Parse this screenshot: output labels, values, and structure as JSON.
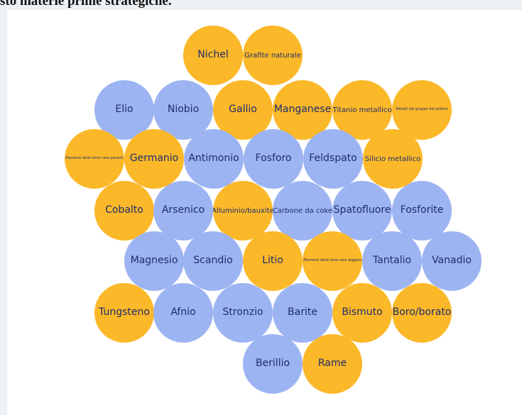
{
  "header": {
    "title": "sto materie prime strategiche."
  },
  "colors": {
    "gold": "#fbb829",
    "blue": "#9db4f2",
    "text": "#1d2d6b"
  },
  "bubbles": [
    {
      "label": "Nichel",
      "color": "gold",
      "size": "l"
    },
    {
      "label": "Grafite naturale",
      "color": "gold",
      "size": "s"
    },
    {
      "label": "Elio",
      "color": "blue",
      "size": "l"
    },
    {
      "label": "Niobio",
      "color": "blue",
      "size": "l"
    },
    {
      "label": "Gallio",
      "color": "gold",
      "size": "l"
    },
    {
      "label": "Manganese",
      "color": "gold",
      "size": "l"
    },
    {
      "label": "Titanio metallico",
      "color": "gold",
      "size": "s"
    },
    {
      "label": "Metalli del gruppo del platino",
      "color": "gold",
      "size": "xs"
    },
    {
      "label": "Elementi delle terre rare pesanti",
      "color": "gold",
      "size": "xs"
    },
    {
      "label": "Germanio",
      "color": "gold",
      "size": "l"
    },
    {
      "label": "Antimonio",
      "color": "blue",
      "size": "l"
    },
    {
      "label": "Fosforo",
      "color": "blue",
      "size": "l"
    },
    {
      "label": "Feldspato",
      "color": "blue",
      "size": "l"
    },
    {
      "label": "Silicio metallico",
      "color": "gold",
      "size": "s"
    },
    {
      "label": "Cobalto",
      "color": "gold",
      "size": "l"
    },
    {
      "label": "Arsenico",
      "color": "blue",
      "size": "l"
    },
    {
      "label": "Alluminio/bauxite",
      "color": "gold",
      "size": "s"
    },
    {
      "label": "Carbone da coke",
      "color": "blue",
      "size": "s"
    },
    {
      "label": "Spatofluore",
      "color": "blue",
      "size": "l"
    },
    {
      "label": "Fosforite",
      "color": "blue",
      "size": "l"
    },
    {
      "label": "Magnesio",
      "color": "blue",
      "size": "l"
    },
    {
      "label": "Scandio",
      "color": "blue",
      "size": "l"
    },
    {
      "label": "Litio",
      "color": "gold",
      "size": "l"
    },
    {
      "label": "Elementi delle terre rare leggere",
      "color": "gold",
      "size": "xs"
    },
    {
      "label": "Tantalio",
      "color": "blue",
      "size": "l"
    },
    {
      "label": "Vanadio",
      "color": "blue",
      "size": "l"
    },
    {
      "label": "Tungsteno",
      "color": "gold",
      "size": "l"
    },
    {
      "label": "Afnio",
      "color": "blue",
      "size": "l"
    },
    {
      "label": "Stronzio",
      "color": "blue",
      "size": "l"
    },
    {
      "label": "Barite",
      "color": "blue",
      "size": "l"
    },
    {
      "label": "Bismuto",
      "color": "gold",
      "size": "l"
    },
    {
      "label": "Boro/borato",
      "color": "gold",
      "size": "l"
    },
    {
      "label": "Berillio",
      "color": "blue",
      "size": "l"
    },
    {
      "label": "Rame",
      "color": "gold",
      "size": "l"
    }
  ]
}
